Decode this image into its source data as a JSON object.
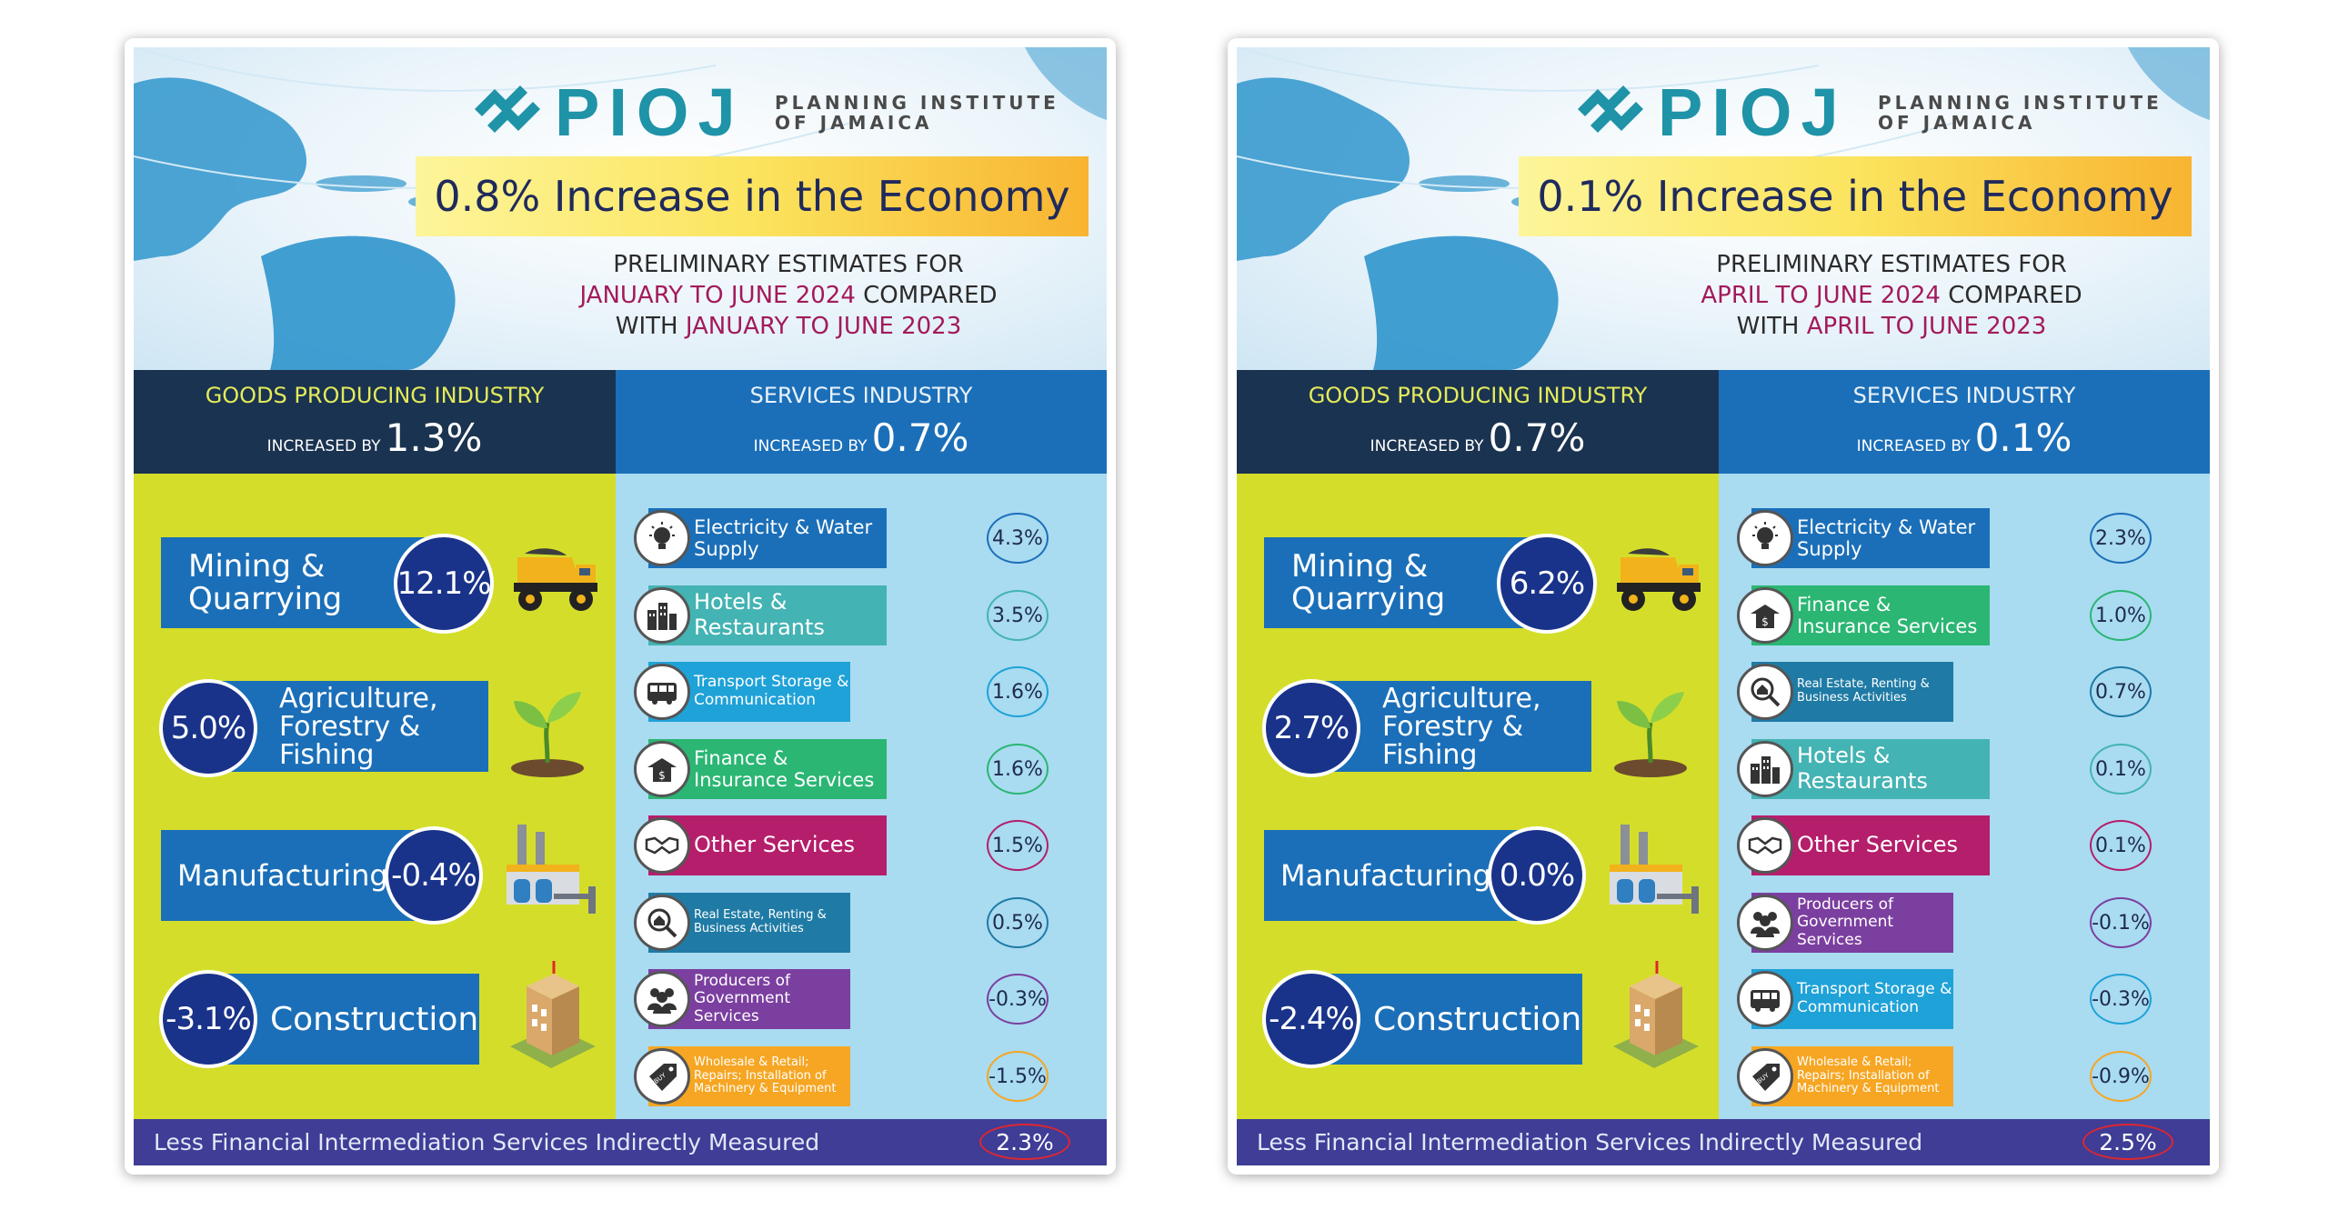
{
  "infographics": [
    {
      "logo": {
        "name": "PIOJ",
        "subtitle": "PLANNING INSTITUTE OF JAMAICA"
      },
      "headline": "0.8% Increase in the Economy",
      "subtitle": {
        "line1": "PRELIMINARY ESTIMATES FOR",
        "period_current": "JANUARY TO JUNE 2024",
        "compared": " COMPARED",
        "with": "WITH ",
        "period_previous": "JANUARY TO JUNE 2023"
      },
      "goods": {
        "title": "GOODS PRODUCING INDUSTRY",
        "increased_by_label": "INCREASED BY",
        "value": "1.3%",
        "sectors": [
          {
            "label": "Mining & Quarrying",
            "value": "12.1%"
          },
          {
            "label": "Agriculture, Forestry & Fishing",
            "value": "5.0%"
          },
          {
            "label": "Manufacturing",
            "value": "-0.4%"
          },
          {
            "label": "Construction",
            "value": "-3.1%"
          }
        ]
      },
      "services": {
        "title": "SERVICES INDUSTRY",
        "increased_by_label": "INCREASED BY",
        "value": "0.7%",
        "sectors": [
          {
            "label": "Electricity & Water Supply",
            "value": "4.3%",
            "icon": "lightbulb-icon",
            "color": "#1b6fb8"
          },
          {
            "label": "Hotels & Restaurants",
            "value": "3.5%",
            "icon": "buildings-icon",
            "color": "#44b3b3"
          },
          {
            "label": "Transport Storage & Communication",
            "value": "1.6%",
            "icon": "bus-icon",
            "color": "#1fa2d8"
          },
          {
            "label": "Finance & Insurance Services",
            "value": "1.6%",
            "icon": "finance-icon",
            "color": "#2bb673"
          },
          {
            "label": "Other Services",
            "value": "1.5%",
            "icon": "handshake-icon",
            "color": "#b51e6b"
          },
          {
            "label": "Real Estate, Renting & Business Activities",
            "value": "0.5%",
            "icon": "real-estate-icon",
            "color": "#1f7ba5"
          },
          {
            "label": "Producers of Government Services",
            "value": "-0.3%",
            "icon": "people-icon",
            "color": "#7b3fa0"
          },
          {
            "label": "Wholesale & Retail; Repairs; Installation of Machinery & Equipment",
            "value": "-1.5%",
            "icon": "buy-tag-icon",
            "color": "#f6a623"
          }
        ]
      },
      "footer": {
        "label": "Less Financial Intermediation Services Indirectly Measured",
        "value": "2.3%"
      }
    },
    {
      "logo": {
        "name": "PIOJ",
        "subtitle": "PLANNING INSTITUTE OF JAMAICA"
      },
      "headline": "0.1% Increase in the Economy",
      "subtitle": {
        "line1": "PRELIMINARY ESTIMATES FOR",
        "period_current": "APRIL TO JUNE 2024",
        "compared": " COMPARED",
        "with": "WITH ",
        "period_previous": "APRIL TO JUNE 2023"
      },
      "goods": {
        "title": "GOODS PRODUCING INDUSTRY",
        "increased_by_label": "INCREASED BY",
        "value": "0.7%",
        "sectors": [
          {
            "label": "Mining & Quarrying",
            "value": "6.2%"
          },
          {
            "label": "Agriculture, Forestry & Fishing",
            "value": "2.7%"
          },
          {
            "label": "Manufacturing",
            "value": "0.0%"
          },
          {
            "label": "Construction",
            "value": "-2.4%"
          }
        ]
      },
      "services": {
        "title": "SERVICES INDUSTRY",
        "increased_by_label": "INCREASED BY",
        "value": "0.1%",
        "sectors": [
          {
            "label": "Electricity & Water Supply",
            "value": "2.3%",
            "icon": "lightbulb-icon",
            "color": "#1b6fb8"
          },
          {
            "label": "Finance & Insurance Services",
            "value": "1.0%",
            "icon": "finance-icon",
            "color": "#2bb673"
          },
          {
            "label": "Real Estate, Renting & Business Activities",
            "value": "0.7%",
            "icon": "real-estate-icon",
            "color": "#1f7ba5"
          },
          {
            "label": "Hotels & Restaurants",
            "value": "0.1%",
            "icon": "buildings-icon",
            "color": "#44b3b3"
          },
          {
            "label": "Other Services",
            "value": "0.1%",
            "icon": "handshake-icon",
            "color": "#b51e6b"
          },
          {
            "label": "Producers of Government Services",
            "value": "-0.1%",
            "icon": "people-icon",
            "color": "#7b3fa0"
          },
          {
            "label": "Transport Storage & Communication",
            "value": "-0.3%",
            "icon": "bus-icon",
            "color": "#1fa2d8"
          },
          {
            "label": "Wholesale & Retail; Repairs; Installation of Machinery & Equipment",
            "value": "-0.9%",
            "icon": "buy-tag-icon",
            "color": "#f6a623"
          }
        ]
      },
      "footer": {
        "label": "Less Financial Intermediation Services Indirectly Measured",
        "value": "2.5%"
      }
    }
  ]
}
